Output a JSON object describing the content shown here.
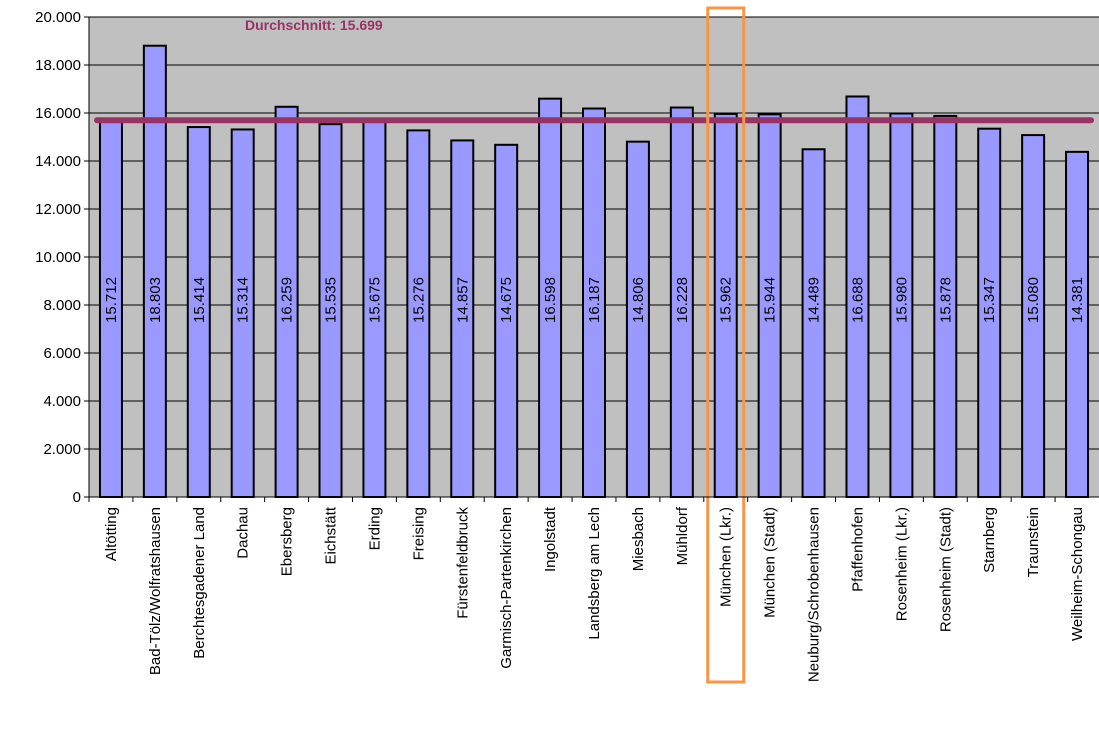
{
  "chart_data": {
    "type": "bar",
    "categories": [
      "Altötting",
      "Bad-Tölz/Wolfratshausen",
      "Berchtesgadener Land",
      "Dachau",
      "Ebersberg",
      "Eichstätt",
      "Erding",
      "Freising",
      "Fürstenfeldbruck",
      "Garmisch-Partenkirchen",
      "Ingolstadt",
      "Landsberg am Lech",
      "Miesbach",
      "Mühldorf",
      "München (Lkr.)",
      "München (Stadt)",
      "Neuburg/Schrobenhausen",
      "Pfaffenhofen",
      "Rosenheim (Lkr.)",
      "Rosenheim (Stadt)",
      "Starnberg",
      "Traunstein",
      "Weilheim-Schongau"
    ],
    "values": [
      15712,
      18803,
      15414,
      15314,
      16259,
      15535,
      15675,
      15276,
      14857,
      14675,
      16598,
      16187,
      14806,
      16228,
      15962,
      15944,
      14489,
      16688,
      15980,
      15878,
      15347,
      15080,
      14381
    ],
    "value_labels": [
      "15.712",
      "18.803",
      "15.414",
      "15.314",
      "16.259",
      "15.535",
      "15.675",
      "15.276",
      "14.857",
      "14.675",
      "16.598",
      "16.187",
      "14.806",
      "16.228",
      "15.962",
      "15.944",
      "14.489",
      "16.688",
      "15.980",
      "15.878",
      "15.347",
      "15.080",
      "14.381"
    ],
    "ylim": [
      0,
      20000
    ],
    "y_ticks": [
      0,
      2000,
      4000,
      6000,
      8000,
      10000,
      12000,
      14000,
      16000,
      18000,
      20000
    ],
    "y_tick_labels": [
      "0",
      "2.000",
      "4.000",
      "6.000",
      "8.000",
      "10.000",
      "12.000",
      "14.000",
      "16.000",
      "18.000",
      "20.000"
    ],
    "average": {
      "value": 15699,
      "label": "Durchschnitt: 15.699"
    },
    "highlight_category": "München (Lkr.)",
    "grid": true,
    "colors": {
      "bar_fill": "#9999ff",
      "bar_stroke": "#000000",
      "plot_background": "#c0c0c0",
      "average_line": "#993366",
      "highlight_box": "#f79646"
    }
  }
}
